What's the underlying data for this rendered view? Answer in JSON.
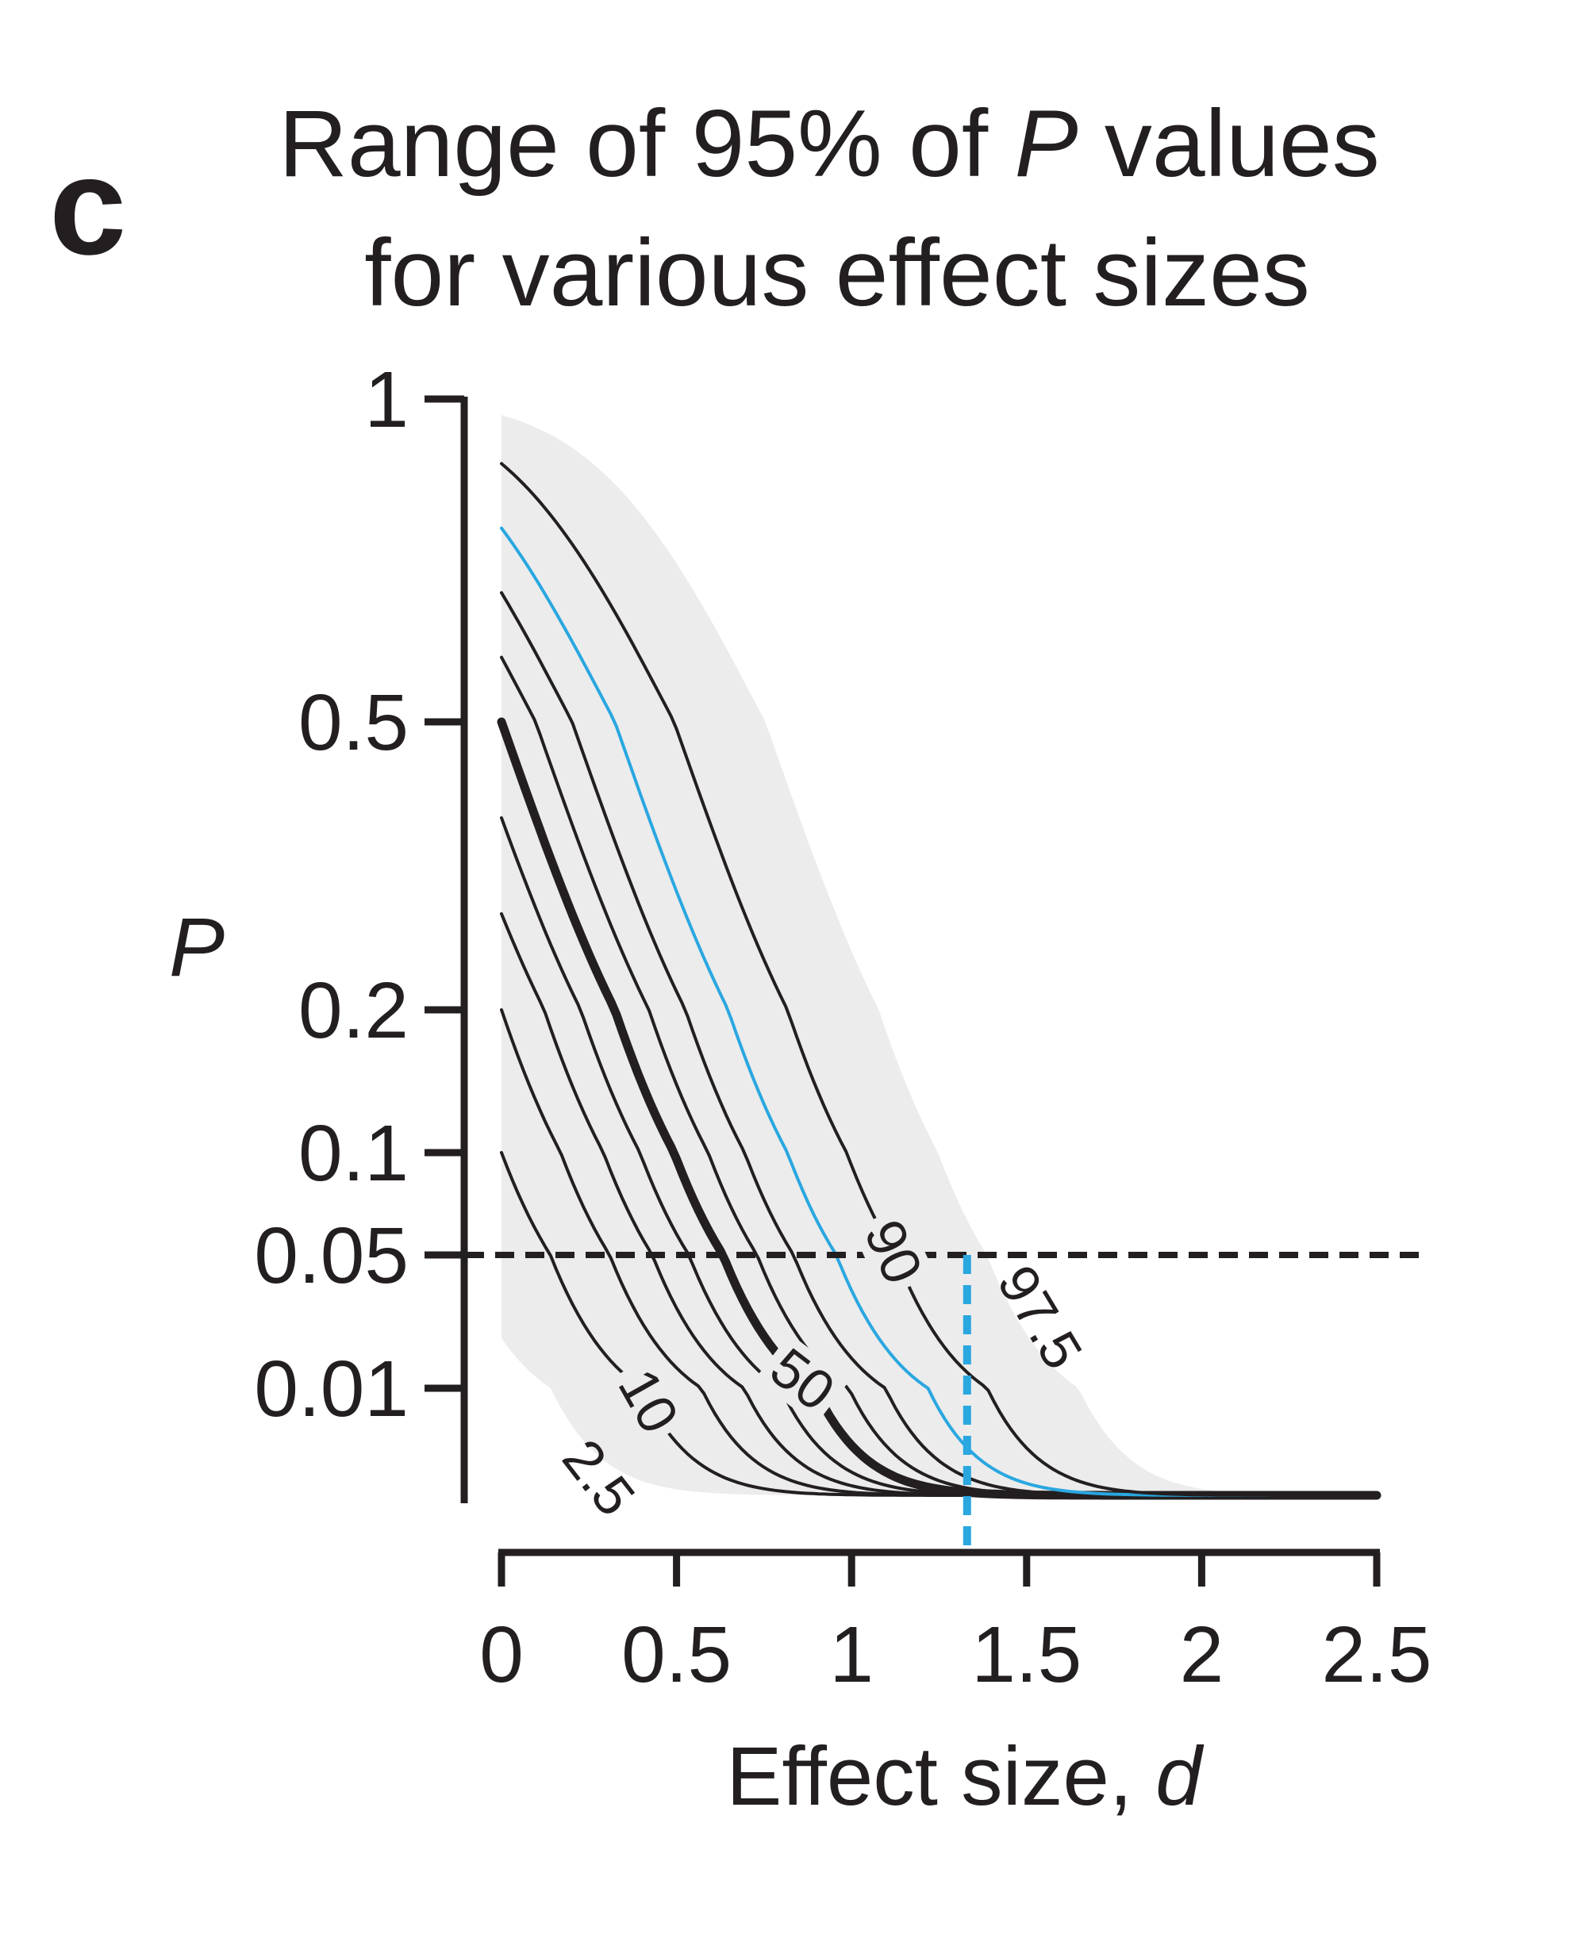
{
  "panel_letter": "c",
  "title_line1": "Range of 95% of ",
  "title_italic": "P",
  "title_line1_end": " values",
  "title_line2": "for various effect sizes",
  "colors": {
    "ink": "#231f20",
    "band": "#ececec",
    "highlight": "#2aa7e0"
  },
  "chart_data": {
    "type": "line",
    "title": "Range of 95% of P values for various effect sizes",
    "xlabel_text": "Effect size, ",
    "xlabel_italic": "d",
    "ylabel": "P",
    "xlim": [
      0,
      2.5
    ],
    "x_ticks": [
      0,
      0.5,
      1,
      1.5,
      2,
      2.5
    ],
    "x_tick_labels": [
      "0",
      "0.5",
      "1",
      "1.5",
      "2",
      "2.5"
    ],
    "y_ticks": [
      1,
      0.5,
      0.2,
      0.1,
      0.05,
      0.01
    ],
    "y_tick_labels": [
      "1",
      "0.5",
      "0.2",
      "0.1",
      "0.05",
      "0.01"
    ],
    "y_scale": "transformed (non-linear)",
    "threshold_p": 0.05,
    "highlight_d": 1.33,
    "band": {
      "name": "95% range (2.5–97.5 percentiles)"
    },
    "series": [
      {
        "name": "2.5",
        "p_at_0": 0.025,
        "labeled": true
      },
      {
        "name": "10",
        "p_at_0": 0.1,
        "labeled": true
      },
      {
        "name": "20",
        "p_at_0": 0.2,
        "labeled": false
      },
      {
        "name": "30",
        "p_at_0": 0.3,
        "labeled": false
      },
      {
        "name": "40",
        "p_at_0": 0.4,
        "labeled": false
      },
      {
        "name": "50",
        "p_at_0": 0.5,
        "labeled": true,
        "emphasis": true
      },
      {
        "name": "60",
        "p_at_0": 0.6,
        "labeled": false
      },
      {
        "name": "70",
        "p_at_0": 0.7,
        "labeled": false
      },
      {
        "name": "80",
        "p_at_0": 0.8,
        "labeled": false,
        "highlight": true
      },
      {
        "name": "90",
        "p_at_0": 0.9,
        "labeled": true
      },
      {
        "name": "97.5",
        "p_at_0": 0.975,
        "labeled": true
      }
    ]
  }
}
